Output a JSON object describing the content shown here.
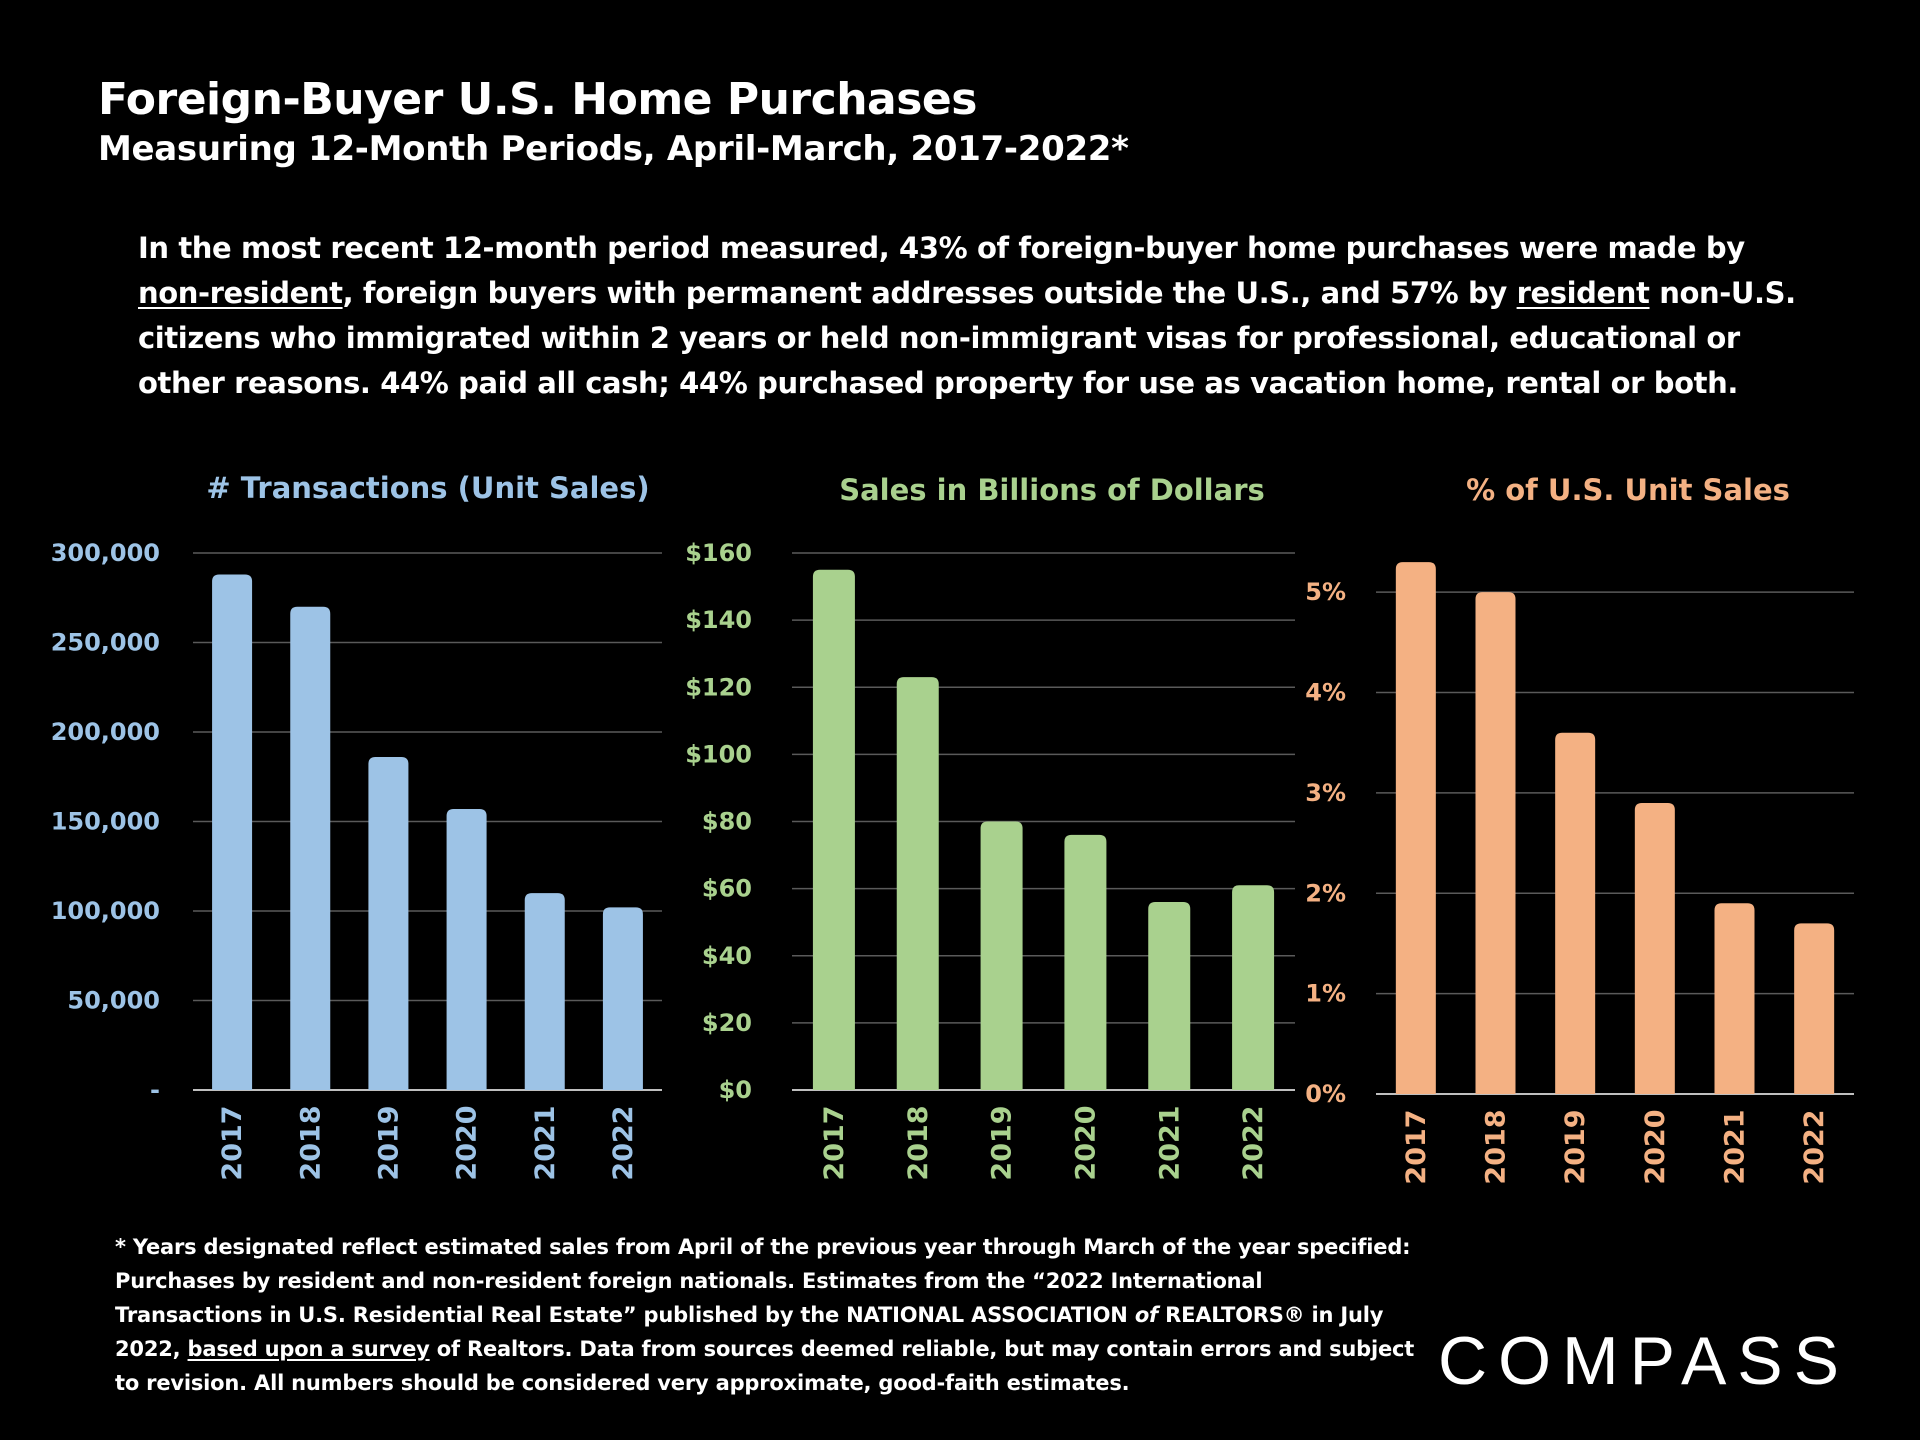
{
  "header": {
    "title": "Foreign-Buyer U.S. Home Purchases",
    "subtitle": "Measuring 12-Month Periods, April-March, 2017-2022*"
  },
  "intro": {
    "part1": "In the most recent 12-month period measured, 43% of foreign-buyer home purchases were made by ",
    "link1": "non-resident",
    "part2": ", foreign buyers with permanent addresses outside the U.S., and 57% by ",
    "link2": "resident",
    "part3": " non-U.S. citizens who immigrated within 2 years or held non-immigrant visas for professional, educational or other reasons. 44% paid all cash; 44% purchased property for use as vacation home, rental or both."
  },
  "chart_data": [
    {
      "type": "bar",
      "title": "# Transactions (Unit Sales)",
      "categories": [
        "2017",
        "2018",
        "2019",
        "2020",
        "2021",
        "2022"
      ],
      "values": [
        288000,
        270000,
        186000,
        157000,
        110000,
        102000
      ],
      "ylim": [
        0,
        300000
      ],
      "yticks": [
        0,
        50000,
        100000,
        150000,
        200000,
        250000,
        300000
      ],
      "ytick_labels": [
        "-",
        "50,000",
        "100,000",
        "150,000",
        "200,000",
        "250,000",
        "300,000"
      ],
      "xlabel": "",
      "ylabel": "",
      "grid": true,
      "color": "#9dc3e6"
    },
    {
      "type": "bar",
      "title": "Sales in Billions of Dollars",
      "categories": [
        "2017",
        "2018",
        "2019",
        "2020",
        "2021",
        "2022"
      ],
      "values": [
        155,
        123,
        80,
        76,
        56,
        61
      ],
      "ylim": [
        0,
        160
      ],
      "yticks": [
        0,
        20,
        40,
        60,
        80,
        100,
        120,
        140,
        160
      ],
      "ytick_labels": [
        "$0",
        "$20",
        "$40",
        "$60",
        "$80",
        "$100",
        "$120",
        "$140",
        "$160"
      ],
      "xlabel": "",
      "ylabel": "",
      "grid": true,
      "color": "#a9d18e"
    },
    {
      "type": "bar",
      "title": "% of U.S. Unit Sales",
      "categories": [
        "2017",
        "2018",
        "2019",
        "2020",
        "2021",
        "2022"
      ],
      "values": [
        5.3,
        5.0,
        3.6,
        2.9,
        1.9,
        1.7
      ],
      "ylim": [
        0,
        5.5
      ],
      "yticks": [
        0,
        1,
        2,
        3,
        4,
        5
      ],
      "ytick_labels": [
        "0%",
        "1%",
        "2%",
        "3%",
        "4%",
        "5%"
      ],
      "xlabel": "",
      "ylabel": "",
      "grid": true,
      "color": "#f4b183"
    }
  ],
  "footnote": {
    "part1": "* Years designated reflect estimated sales from April of the previous year through March of the year specified: Purchases by resident and non-resident foreign nationals. Estimates from the “2022 International Transactions in U.S. Residential Real Estate” published by the NATIONAL ASSOCIATION ",
    "of": "of",
    "part2": " REALTORS® in July 2022, ",
    "link": "based upon a survey",
    "part3": " of Realtors. Data from sources deemed reliable, but may contain errors and subject to revision. All numbers should be considered very approximate, good-faith estimates."
  },
  "logo": "COMPASS"
}
